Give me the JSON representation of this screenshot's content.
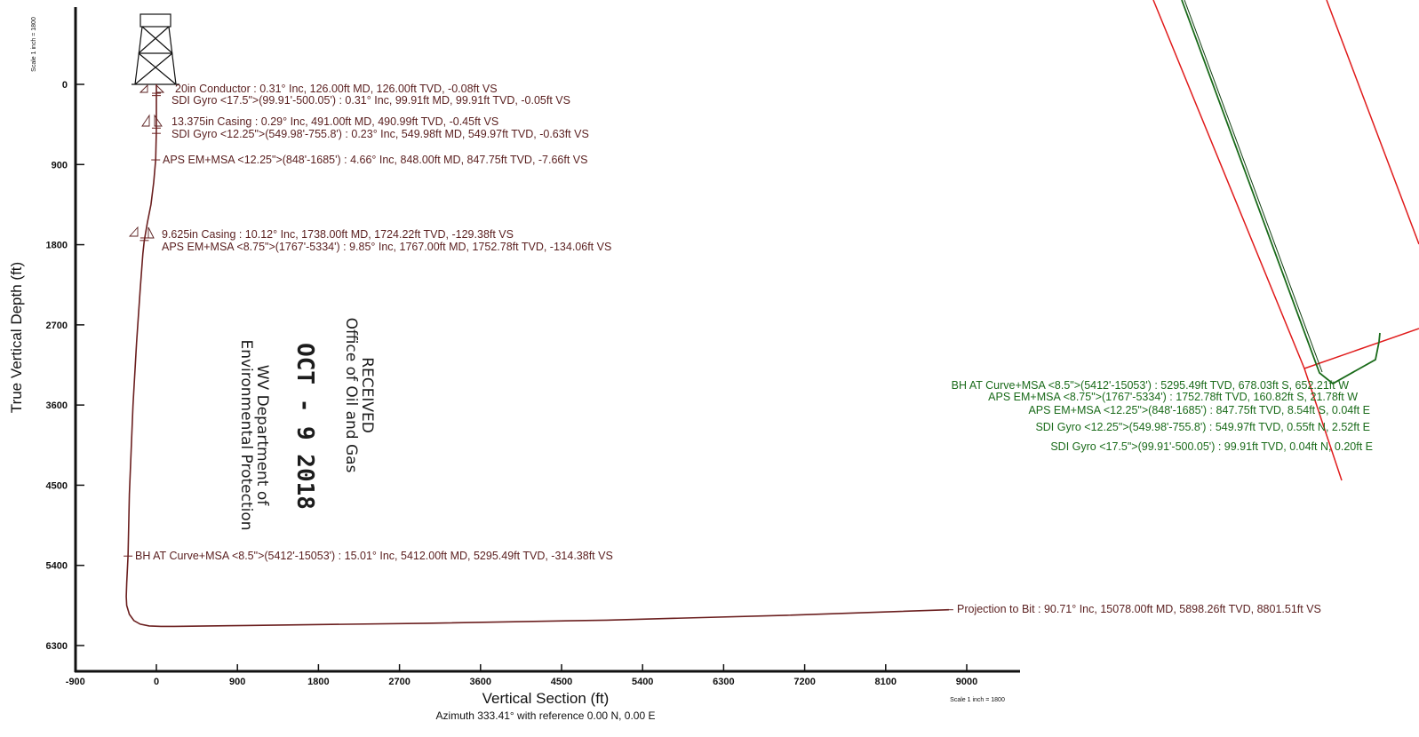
{
  "chart_data": {
    "type": "line",
    "xlabel": "Vertical Section (ft)",
    "ylabel": "True Vertical Depth (ft)",
    "subtitle": "Azimuth 333.41° with reference 0.00 N, 0.00 E",
    "scale_note_x": "Scale 1 inch = 1800",
    "scale_note_y": "Scale 1 inch = 1800",
    "xlim": [
      -900,
      9900
    ],
    "ylim": [
      -800,
      6600
    ],
    "x_ticks": [
      -900,
      0,
      900,
      1800,
      2700,
      3600,
      4500,
      5400,
      6300,
      7200,
      8100,
      9000
    ],
    "y_ticks": [
      0,
      900,
      1800,
      2700,
      3600,
      4500,
      5400,
      6300
    ],
    "series": [
      {
        "color": "#6b1f1f",
        "x": [
          0,
          -0.08,
          -0.05,
          -0.45,
          -0.63,
          -7.66,
          -30,
          -60,
          -100,
          -129.38,
          -134.06,
          -150,
          -180,
          -220,
          -260,
          -300,
          -314.38,
          -330,
          -335,
          -330,
          -300,
          -250,
          -180,
          -80,
          50,
          200,
          1000,
          3000,
          5000,
          7000,
          8801.51
        ],
        "y": [
          0,
          126,
          99.91,
          490.99,
          549.97,
          847.75,
          1100,
          1350,
          1550,
          1724.22,
          1752.78,
          1900,
          2300,
          2900,
          3600,
          4600,
          5295.49,
          5600,
          5750,
          5850,
          5950,
          6020,
          6060,
          6080,
          6085,
          6085,
          6075,
          6050,
          6015,
          5960,
          5898.26
        ]
      }
    ],
    "annotations": [
      {
        "text": "20in Conductor : 0.31° Inc, 126.00ft MD, 126.00ft TVD, -0.08ft VS",
        "x": -0.08,
        "y": 126
      },
      {
        "text": "SDI Gyro <17.5\">(99.91'-500.05') : 0.31° Inc, 99.91ft MD, 99.91ft TVD, -0.05ft VS",
        "x": -0.05,
        "y": 99.91
      },
      {
        "text": "13.375in Casing : 0.29° Inc, 491.00ft MD, 490.99ft TVD, -0.45ft VS",
        "x": -0.45,
        "y": 490.99
      },
      {
        "text": "SDI Gyro <12.25\">(549.98'-755.8') : 0.23° Inc, 549.98ft MD, 549.97ft TVD, -0.63ft VS",
        "x": -0.63,
        "y": 549.97
      },
      {
        "text": "APS EM+MSA <12.25\">(848'-1685') : 4.66° Inc, 848.00ft MD, 847.75ft TVD, -7.66ft VS",
        "x": -7.66,
        "y": 847.75
      },
      {
        "text": "9.625in Casing : 10.12° Inc, 1738.00ft MD, 1724.22ft TVD, -129.38ft VS",
        "x": -129.38,
        "y": 1724.22
      },
      {
        "text": "APS EM+MSA <8.75\">(1767'-5334') : 9.85° Inc, 1767.00ft MD, 1752.78ft TVD, -134.06ft VS",
        "x": -134.06,
        "y": 1752.78
      },
      {
        "text": "BH AT Curve+MSA <8.5\">(5412'-15053') : 15.01° Inc, 5412.00ft MD, 5295.49ft TVD, -314.38ft VS",
        "x": -314.38,
        "y": 5295.49
      },
      {
        "text": "Projection to Bit : 90.71° Inc, 15078.00ft MD, 5898.26ft TVD, 8801.51ft VS",
        "x": 8801.51,
        "y": 5898.26
      }
    ],
    "plan_view_labels": [
      "BH AT Curve+MSA <8.5\">(5412'-15053') : 5295.49ft TVD, 678.03ft S, 652.21ft W",
      "APS EM+MSA <8.75\">(1767'-5334') : 1752.78ft TVD, 160.82ft S, 21.78ft W",
      "APS EM+MSA <12.25\">(848'-1685') : 847.75ft TVD, 8.54ft S, 0.04ft E",
      "SDI Gyro <12.25\">(549.98'-755.8') : 549.97ft TVD, 0.55ft N, 2.52ft E",
      "SDI Gyro <17.5\">(99.91'-500.05') : 99.91ft TVD, 0.04ft N, 0.20ft E"
    ],
    "stamp": {
      "line1": "RECEIVED",
      "line2": "Office of Oil and Gas",
      "date": "OCT - 9 2018",
      "line3": "WV Department of",
      "line4": "Environmental Protection"
    },
    "colors": {
      "wellbore": "#6b1f1f",
      "well_label": "#5a1f1f",
      "plan_track": "#1a6b1a",
      "plan_label": "#1a6b1a",
      "lease_line": "#e01b1b",
      "axis": "#111111"
    }
  }
}
